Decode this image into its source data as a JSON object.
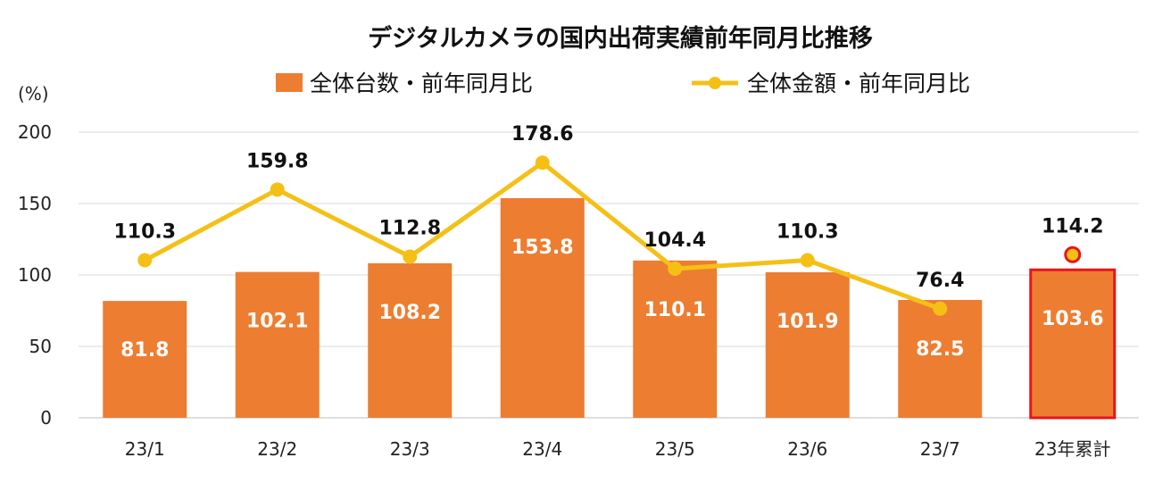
{
  "chart_data": {
    "type": "bar",
    "title": "デジタルカメラの国内出荷実績前年同月比推移",
    "unit_label": "(%)",
    "categories": [
      "23/1",
      "23/2",
      "23/3",
      "23/4",
      "23/5",
      "23/6",
      "23/7",
      "23年累計"
    ],
    "ylim": [
      0,
      200
    ],
    "yticks": [
      0,
      50,
      100,
      150,
      200
    ],
    "grid": true,
    "legend_position": "top",
    "series": [
      {
        "name": "全体台数・前年同月比",
        "type": "bar",
        "color": "#ED7D31",
        "values": [
          81.8,
          102.1,
          108.2,
          153.8,
          110.1,
          101.9,
          82.5,
          103.6
        ],
        "labels": [
          "81.8",
          "102.1",
          "108.2",
          "153.8",
          "110.1",
          "101.9",
          "82.5",
          "103.6"
        ]
      },
      {
        "name": "全体金額・前年同月比",
        "type": "line",
        "color": "#F5C016",
        "values": [
          110.3,
          159.8,
          112.8,
          178.6,
          104.4,
          110.3,
          76.4,
          114.2
        ],
        "labels": [
          "110.3",
          "159.8",
          "112.8",
          "178.6",
          "104.4",
          "110.3",
          "76.4",
          "114.2"
        ]
      }
    ],
    "highlight": {
      "category": "23年累計",
      "bar_outline_color": "#E8141B",
      "point_outline_color": "#E8141B"
    }
  }
}
